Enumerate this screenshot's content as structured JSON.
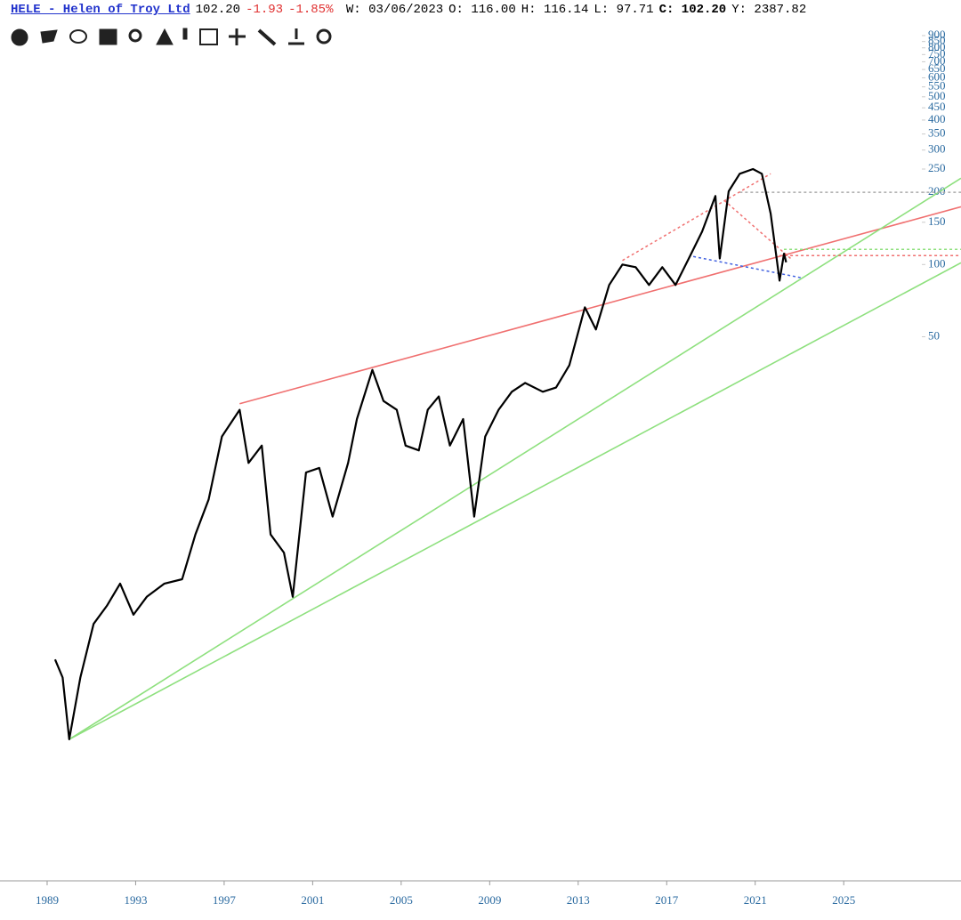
{
  "header": {
    "ticker": "HELE - Helen of Troy Ltd",
    "last": "102.20",
    "change": "-1.93",
    "change_pct": "-1.85%",
    "fields": [
      "W: 03/06/2023",
      "O: 116.00",
      "H: 116.14",
      "L: 97.71",
      "C: 102.20",
      "Y: 2387.82"
    ]
  },
  "chart_data": {
    "type": "line",
    "yscale": "log",
    "x": [
      1989.36,
      1989.7,
      1990.0,
      1990.5,
      1991.1,
      1991.7,
      1992.3,
      1992.9,
      1993.5,
      1994.3,
      1995.1,
      1995.7,
      1996.3,
      1996.9,
      1997.7,
      1998.1,
      1998.7,
      1999.1,
      1999.7,
      2000.1,
      2000.7,
      2001.3,
      2001.9,
      2002.6,
      2003.0,
      2003.7,
      2004.2,
      2004.8,
      2005.2,
      2005.8,
      2006.2,
      2006.7,
      2007.2,
      2007.8,
      2008.3,
      2008.8,
      2009.4,
      2010.0,
      2010.6,
      2011.4,
      2012.0,
      2012.6,
      2013.3,
      2013.8,
      2014.4,
      2015.0,
      2015.6,
      2016.2,
      2016.8,
      2017.4,
      2018.0,
      2018.6,
      2019.2,
      2019.4,
      2019.8,
      2020.3,
      2020.9,
      2021.3,
      2021.7,
      2022.1,
      2022.3,
      2022.4
    ],
    "series": [
      {
        "color": "#000000",
        "values": [
          2.26,
          1.9,
          1.05,
          1.9,
          3.18,
          3.78,
          4.68,
          3.47,
          4.12,
          4.68,
          4.88,
          7.5,
          10.5,
          19.2,
          24.8,
          14.9,
          17.6,
          7.5,
          6.3,
          4.12,
          13.6,
          14.2,
          8.9,
          14.9,
          22.7,
          36.4,
          27.0,
          24.8,
          17.6,
          16.8,
          24.8,
          28.2,
          17.6,
          22.7,
          8.9,
          19.2,
          24.8,
          29.5,
          32.1,
          29.5,
          30.7,
          38.0,
          66.3,
          53.6,
          82.2,
          100,
          97.5,
          82.2,
          97.5,
          82.2,
          106,
          137,
          193,
          106,
          202,
          239,
          250,
          239,
          163,
          85.7,
          111,
          102.2
        ]
      }
    ],
    "trendlines": [
      {
        "x": [
          1997.7,
          2030.3
        ],
        "values": [
          26.3,
          174
        ],
        "color": "#f07070",
        "dashed": false
      },
      {
        "x": [
          1990.0,
          2030.3
        ],
        "values": [
          1.05,
          229
        ],
        "color": "#8ee07e",
        "dashed": false
      },
      {
        "x": [
          1990.0,
          2030.3
        ],
        "values": [
          1.05,
          101.7
        ],
        "color": "#8ee07e",
        "dashed": false
      },
      {
        "x": [
          2020.3,
          2030.3
        ],
        "values": [
          200,
          200
        ],
        "color": "#aaaaaa",
        "dashed": true
      },
      {
        "x": [
          2022.3,
          2030.3
        ],
        "values": [
          115.7,
          115.7
        ],
        "color": "#8ee07e",
        "dashed": true
      },
      {
        "x": [
          2022.1,
          2030.3
        ],
        "values": [
          109,
          109
        ],
        "color": "#f07070",
        "dashed": true
      },
      {
        "x": [
          2015.0,
          2021.7
        ],
        "values": [
          104,
          239
        ],
        "color": "#f07070",
        "dashed": true
      },
      {
        "x": [
          2019.6,
          2022.6
        ],
        "values": [
          185,
          106
        ],
        "color": "#f07070",
        "dashed": true
      },
      {
        "x": [
          2018.2,
          2023.1
        ],
        "values": [
          108,
          88
        ],
        "color": "#4060e0",
        "dashed": true
      }
    ],
    "xlim": [
      1986.87,
      2030.3
    ],
    "xticks": [
      1989,
      1993,
      1997,
      2001,
      2005,
      2009,
      2013,
      2017,
      2021,
      2025
    ],
    "ylim": [
      0.27,
      980
    ],
    "yticks": [
      900,
      850,
      800,
      750,
      700,
      650,
      600,
      550,
      500,
      450,
      400,
      350,
      300,
      250,
      200,
      150,
      100,
      50
    ]
  }
}
